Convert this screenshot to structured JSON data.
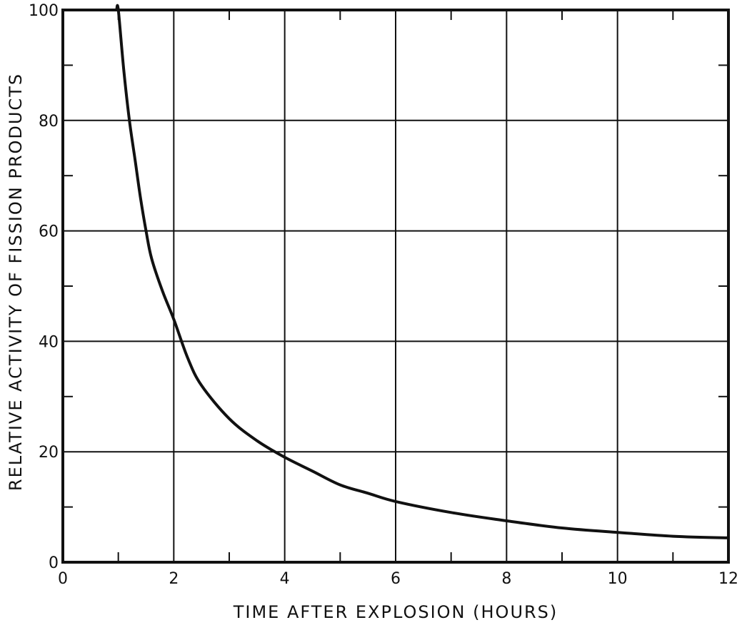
{
  "chart_data": {
    "type": "line",
    "title": "",
    "xlabel": "TIME AFTER EXPLOSION (HOURS)",
    "ylabel": "RELATIVE ACTIVITY OF FISSION PRODUCTS",
    "xlim": [
      0,
      12
    ],
    "ylim": [
      0,
      100
    ],
    "x_ticks": [
      0,
      2,
      4,
      6,
      8,
      10,
      12
    ],
    "y_ticks": [
      0,
      20,
      40,
      60,
      80,
      100
    ],
    "x_minor_ticks": [
      1,
      3,
      5,
      7,
      9,
      11
    ],
    "y_minor_ticks": [
      10,
      30,
      50,
      70,
      90
    ],
    "grid": true,
    "series": [
      {
        "x": [
          0.97,
          1.0,
          1.1,
          1.2,
          1.3,
          1.4,
          1.5,
          1.6,
          1.8,
          2.0,
          2.25,
          2.5,
          3.0,
          3.5,
          4.0,
          4.5,
          5.0,
          5.5,
          6.0,
          7.0,
          8.0,
          9.0,
          10.0,
          11.0,
          12.0
        ],
        "y": [
          100,
          100,
          89,
          80,
          73,
          66,
          60,
          55,
          49,
          44,
          37,
          32,
          26,
          22,
          19,
          16.5,
          14,
          12.5,
          11,
          9,
          7.5,
          6.2,
          5.4,
          4.7,
          4.4
        ]
      }
    ]
  }
}
